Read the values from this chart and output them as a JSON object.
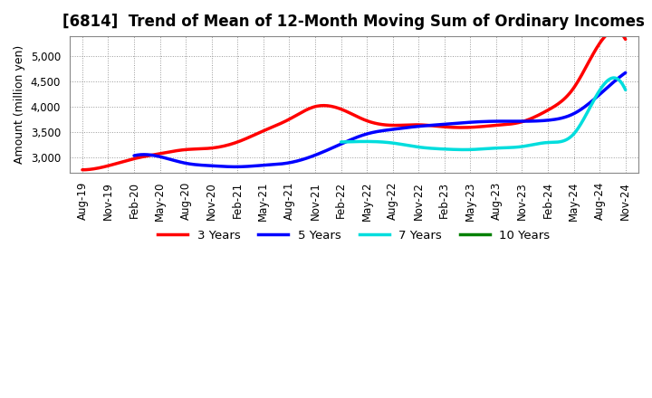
{
  "title": "[6814]  Trend of Mean of 12-Month Moving Sum of Ordinary Incomes",
  "ylabel": "Amount (million yen)",
  "x_labels": [
    "Aug-19",
    "Nov-19",
    "Feb-20",
    "May-20",
    "Aug-20",
    "Nov-20",
    "Feb-21",
    "May-21",
    "Aug-21",
    "Nov-21",
    "Feb-22",
    "May-22",
    "Aug-22",
    "Nov-22",
    "Feb-23",
    "May-23",
    "Aug-23",
    "Nov-23",
    "Feb-24",
    "May-24",
    "Aug-24",
    "Nov-24"
  ],
  "yticks": [
    3000,
    3500,
    4000,
    4500,
    5000
  ],
  "ylim": [
    2700,
    5400
  ],
  "series": {
    "3 Years": {
      "color": "#ff0000",
      "data_x": [
        0,
        1,
        2,
        3,
        4,
        5,
        6,
        7,
        8,
        9,
        10,
        11,
        12,
        13,
        14,
        15,
        16,
        17,
        18,
        19,
        20,
        21
      ],
      "data_y": [
        2760,
        2840,
        2980,
        3080,
        3160,
        3190,
        3310,
        3530,
        3760,
        4010,
        3960,
        3730,
        3640,
        3650,
        3610,
        3600,
        3640,
        3710,
        3940,
        4380,
        5260,
        5340
      ]
    },
    "5 Years": {
      "color": "#0000ff",
      "data_x": [
        2,
        3,
        4,
        5,
        6,
        7,
        8,
        9,
        10,
        11,
        12,
        13,
        14,
        15,
        16,
        17,
        18,
        19,
        20,
        21
      ],
      "data_y": [
        3040,
        3020,
        2890,
        2840,
        2820,
        2850,
        2900,
        3050,
        3270,
        3470,
        3560,
        3620,
        3660,
        3700,
        3720,
        3720,
        3740,
        3870,
        4250,
        4680
      ]
    },
    "7 Years": {
      "color": "#00dddd",
      "data_x": [
        10,
        11,
        12,
        13,
        14,
        15,
        16,
        17,
        18,
        19,
        20,
        21
      ],
      "data_y": [
        3310,
        3320,
        3290,
        3210,
        3170,
        3160,
        3190,
        3220,
        3300,
        3470,
        4330,
        4340
      ]
    },
    "10 Years": {
      "color": "#008000",
      "data_x": [],
      "data_y": []
    }
  },
  "legend_labels": [
    "3 Years",
    "5 Years",
    "7 Years",
    "10 Years"
  ],
  "legend_colors": [
    "#ff0000",
    "#0000ff",
    "#00dddd",
    "#008000"
  ],
  "background_color": "#ffffff",
  "plot_bg_color": "#ffffff",
  "grid_color": "#aaaaaa",
  "title_fontsize": 12,
  "label_fontsize": 9,
  "tick_fontsize": 8.5
}
